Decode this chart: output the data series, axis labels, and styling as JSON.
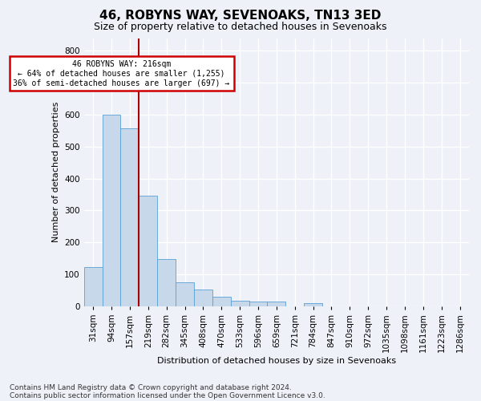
{
  "title1": "46, ROBYNS WAY, SEVENOAKS, TN13 3ED",
  "title2": "Size of property relative to detached houses in Sevenoaks",
  "xlabel": "Distribution of detached houses by size in Sevenoaks",
  "ylabel": "Number of detached properties",
  "footnote1": "Contains HM Land Registry data © Crown copyright and database right 2024.",
  "footnote2": "Contains public sector information licensed under the Open Government Licence v3.0.",
  "categories": [
    "31sqm",
    "94sqm",
    "157sqm",
    "219sqm",
    "282sqm",
    "345sqm",
    "408sqm",
    "470sqm",
    "533sqm",
    "596sqm",
    "659sqm",
    "721sqm",
    "784sqm",
    "847sqm",
    "910sqm",
    "972sqm",
    "1035sqm",
    "1098sqm",
    "1161sqm",
    "1223sqm",
    "1286sqm"
  ],
  "values": [
    122,
    601,
    558,
    345,
    148,
    74,
    51,
    30,
    17,
    15,
    15,
    0,
    8,
    0,
    0,
    0,
    0,
    0,
    0,
    0,
    0
  ],
  "bar_color": "#c8d8eb",
  "bar_edge_color": "#5a9fd4",
  "vline_x": 2.5,
  "vline_color": "#aa0000",
  "annotation_line1": "46 ROBYNS WAY: 216sqm",
  "annotation_line2": "← 64% of detached houses are smaller (1,255)",
  "annotation_line3": "36% of semi-detached houses are larger (697) →",
  "annotation_box_color": "#cc0000",
  "ylim": [
    0,
    840
  ],
  "yticks": [
    0,
    100,
    200,
    300,
    400,
    500,
    600,
    700,
    800
  ],
  "bg_color": "#eef2f8",
  "plot_bg_color": "#eef2f8",
  "grid_color": "#ffffff",
  "title1_fontsize": 11,
  "title2_fontsize": 9,
  "ylabel_fontsize": 8,
  "xlabel_fontsize": 8,
  "tick_fontsize": 7.5,
  "footnote_fontsize": 6.5
}
